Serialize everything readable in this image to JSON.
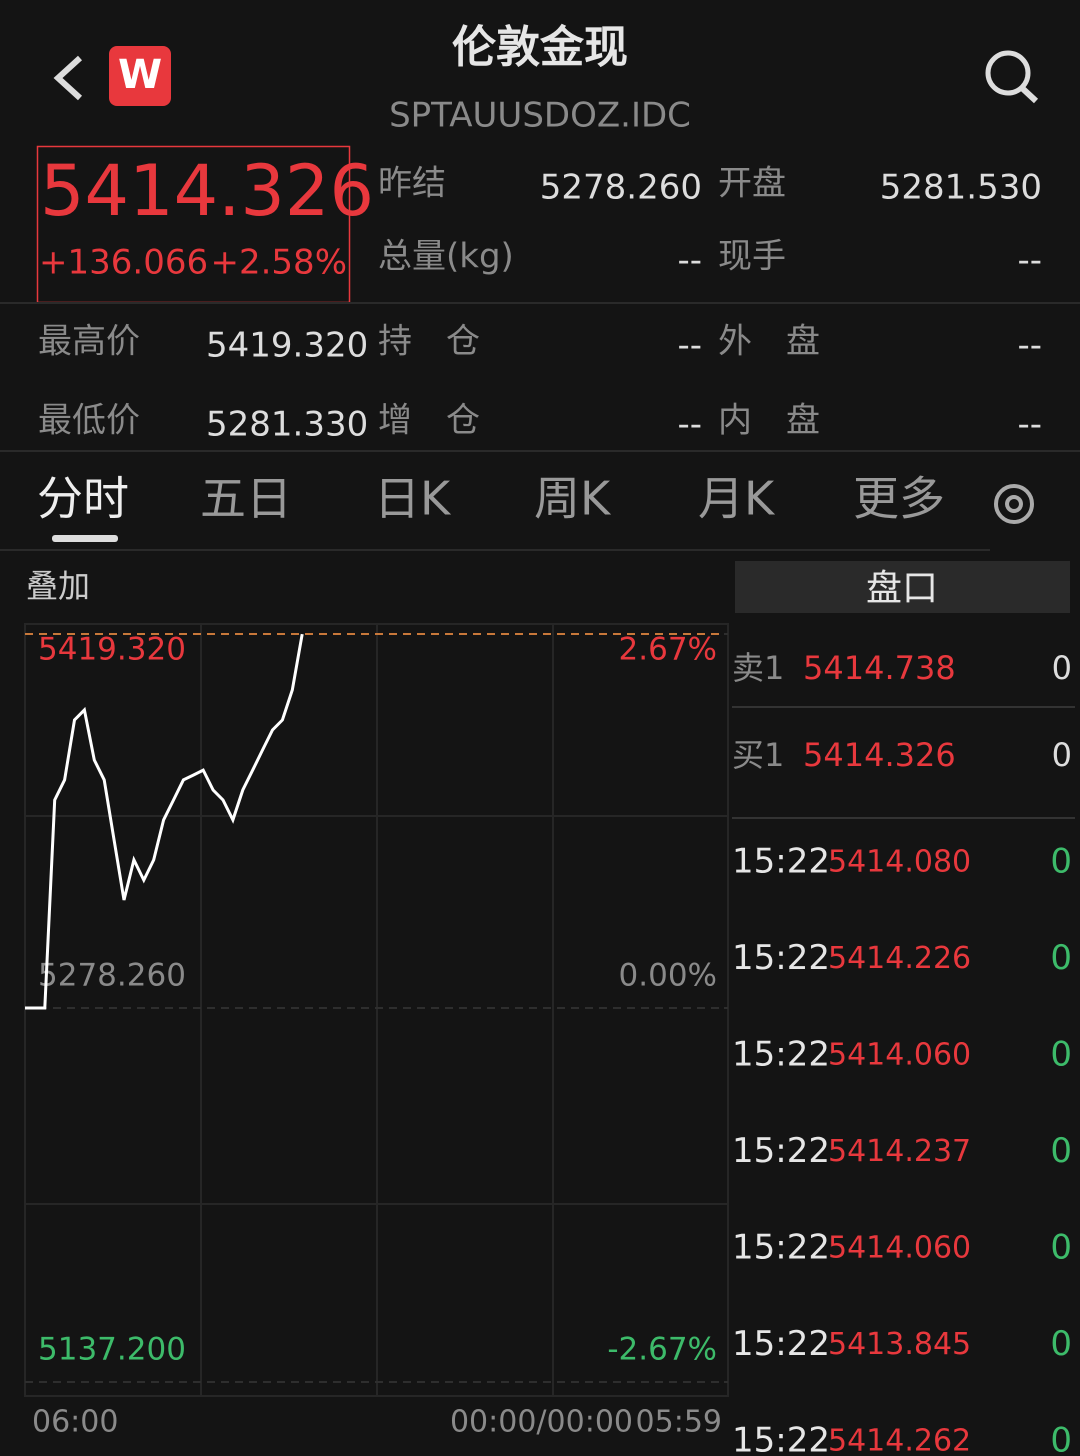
{
  "header": {
    "logo": "W",
    "title": "伦敦金现",
    "code": "SPTAUUSDOZ.IDC"
  },
  "quote": {
    "price": "5414.326",
    "change": "+136.066",
    "percent": "+2.58%"
  },
  "stats": {
    "rows": [
      [
        {
          "label": "昨结",
          "value": "5278.260"
        },
        {
          "label": "开盘",
          "value": "5281.530"
        }
      ],
      [
        {
          "label": "总量(kg)",
          "value": "--"
        },
        {
          "label": "现手",
          "value": "--"
        }
      ],
      [
        {
          "label": "最高价",
          "value": "5419.320"
        },
        {
          "label": "持　仓",
          "value": "--"
        },
        {
          "label": "外　盘",
          "value": "--"
        }
      ],
      [
        {
          "label": "最低价",
          "value": "5281.330"
        },
        {
          "label": "增　仓",
          "value": "--"
        },
        {
          "label": "内　盘",
          "value": "--"
        }
      ]
    ]
  },
  "tabs": [
    "分时",
    "五日",
    "日K",
    "周K",
    "月K",
    "更多"
  ],
  "chart_data": {
    "type": "line",
    "overlay_label": "叠加",
    "series": [
      {
        "color": "#ffffff",
        "values": [
          5278.26,
          5278.26,
          5278.26,
          5356.7,
          5364.3,
          5386.9,
          5390.7,
          5371.8,
          5364.3,
          5341.6,
          5319.0,
          5334.1,
          5326.5,
          5334.1,
          5349.2,
          5356.7,
          5364.3,
          5366.1,
          5368.0,
          5360.5,
          5356.7,
          5349.2,
          5360.5,
          5368.0,
          5375.6,
          5383.1,
          5386.9,
          5398.2,
          5419.3,
          null,
          null,
          null,
          null,
          null,
          null,
          null,
          null,
          null,
          null,
          null,
          null,
          null,
          null,
          null,
          null,
          null,
          null,
          null,
          null,
          null,
          null,
          null,
          null,
          null,
          null,
          null,
          null,
          null,
          null,
          null,
          null,
          null,
          null,
          null,
          null,
          null,
          null,
          null,
          null,
          null,
          null,
          null
        ]
      }
    ],
    "ylim": [
      5137.2,
      5419.32
    ],
    "yticks": [
      {
        "value": 5419.32,
        "label": "5419.320"
      },
      {
        "value": 5278.26,
        "label": "5278.260"
      },
      {
        "value": 5137.2,
        "label": "5137.200"
      }
    ],
    "y2lim": [
      -2.67,
      2.67
    ],
    "y2ticks": [
      {
        "value": 2.67,
        "label": "2.67%"
      },
      {
        "value": 0,
        "label": "0.00%"
      },
      {
        "value": -2.67,
        "label": "-2.67%"
      }
    ],
    "x_tick_labels": [
      "06:00",
      "00:00/00:00",
      "05:59"
    ]
  },
  "order_book": {
    "title": "盘口",
    "quotes": [
      {
        "label": "卖1",
        "price": "5414.738",
        "volume": "0"
      },
      {
        "label": "买1",
        "price": "5414.326",
        "volume": "0"
      }
    ],
    "trades": [
      {
        "time": "15:22",
        "price": "5414.080",
        "volume": "0"
      },
      {
        "time": "15:22",
        "price": "5414.226",
        "volume": "0"
      },
      {
        "time": "15:22",
        "price": "5414.060",
        "volume": "0"
      },
      {
        "time": "15:22",
        "price": "5414.237",
        "volume": "0"
      },
      {
        "time": "15:22",
        "price": "5414.060",
        "volume": "0"
      },
      {
        "time": "15:22",
        "price": "5413.845",
        "volume": "0"
      },
      {
        "time": "15:22",
        "price": "5414.262",
        "volume": "0"
      }
    ]
  }
}
